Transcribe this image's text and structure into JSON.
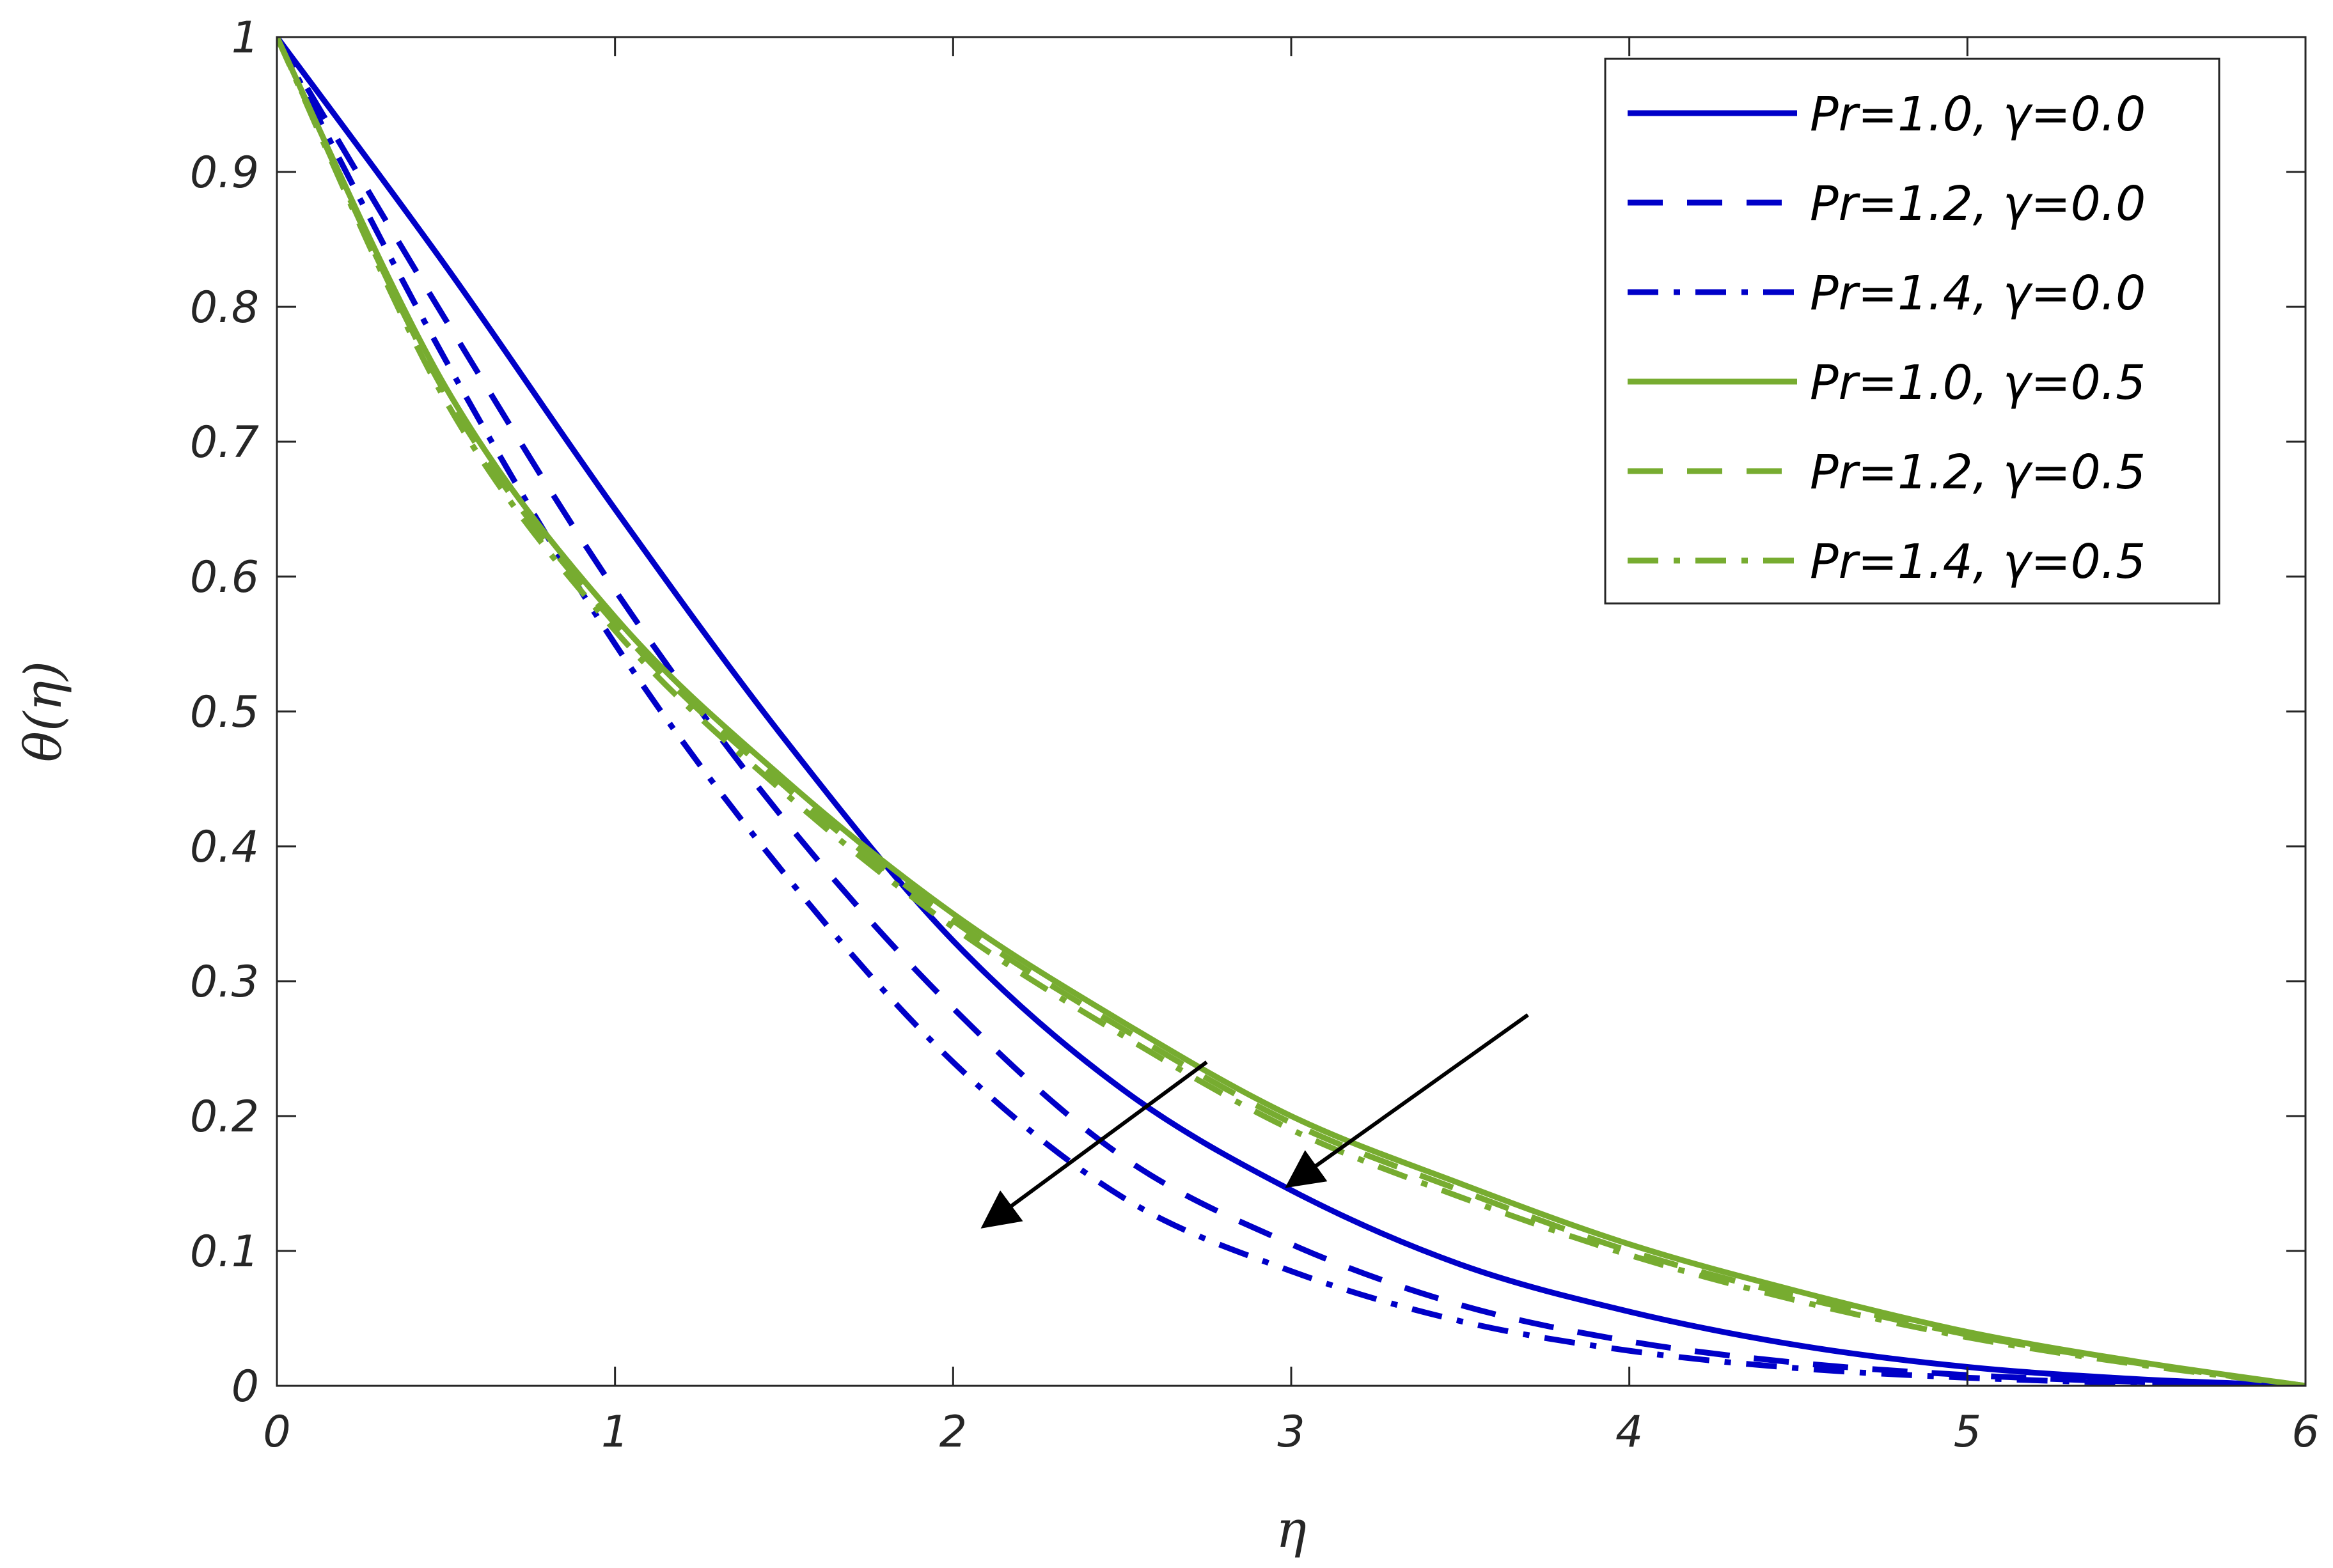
{
  "chart_data": {
    "type": "line",
    "title": "",
    "xlabel": "η",
    "ylabel": "θ(η)",
    "xlim": [
      0,
      6
    ],
    "ylim": [
      0,
      1
    ],
    "xticks": [
      0,
      1,
      2,
      3,
      4,
      5,
      6
    ],
    "xtick_labels": [
      "0",
      "1",
      "2",
      "3",
      "4",
      "5",
      "6"
    ],
    "yticks": [
      0,
      0.1,
      0.2,
      0.3,
      0.4,
      0.5,
      0.6,
      0.7,
      0.8,
      0.9,
      1
    ],
    "ytick_labels": [
      "0",
      "0.1",
      "0.2",
      "0.3",
      "0.4",
      "0.5",
      "0.6",
      "0.7",
      "0.8",
      "0.9",
      "1"
    ],
    "grid": false,
    "legend_position": "top-right",
    "x": [
      0,
      0.5,
      1,
      1.5,
      2,
      2.5,
      3,
      3.5,
      4,
      4.5,
      5,
      5.5,
      6
    ],
    "series": [
      {
        "name": "Pr=1.0, γ=0.0",
        "color": "#0000c8",
        "dash": "solid",
        "values": [
          1.0,
          0.83,
          0.65,
          0.48,
          0.33,
          0.22,
          0.145,
          0.09,
          0.055,
          0.03,
          0.014,
          0.005,
          0.0
        ]
      },
      {
        "name": "Pr=1.2, γ=0.0",
        "color": "#0000c8",
        "dash": "dashed",
        "values": [
          1.0,
          0.79,
          0.59,
          0.42,
          0.28,
          0.17,
          0.105,
          0.06,
          0.033,
          0.017,
          0.008,
          0.003,
          0.0
        ]
      },
      {
        "name": "Pr=1.4, γ=0.0",
        "color": "#0000c8",
        "dash": "dashdot",
        "values": [
          1.0,
          0.76,
          0.55,
          0.38,
          0.24,
          0.14,
          0.085,
          0.048,
          0.026,
          0.013,
          0.006,
          0.002,
          0.0
        ]
      },
      {
        "name": "Pr=1.0, γ=0.5",
        "color": "#77ac30",
        "dash": "solid",
        "values": [
          1.0,
          0.74,
          0.57,
          0.45,
          0.35,
          0.27,
          0.2,
          0.15,
          0.105,
          0.07,
          0.04,
          0.018,
          0.0
        ]
      },
      {
        "name": "Pr=1.2, γ=0.5",
        "color": "#77ac30",
        "dash": "dashed",
        "values": [
          1.0,
          0.735,
          0.565,
          0.445,
          0.345,
          0.265,
          0.195,
          0.145,
          0.1,
          0.066,
          0.038,
          0.017,
          0.0
        ]
      },
      {
        "name": "Pr=1.4, γ=0.5",
        "color": "#77ac30",
        "dash": "dashdot",
        "values": [
          1.0,
          0.73,
          0.56,
          0.44,
          0.34,
          0.26,
          0.19,
          0.14,
          0.097,
          0.063,
          0.036,
          0.016,
          0.0
        ]
      }
    ],
    "annotations": [
      {
        "type": "arrow",
        "from": [
          3.7,
          0.275
        ],
        "to": [
          3.0,
          0.15
        ]
      },
      {
        "type": "arrow",
        "from": [
          2.75,
          0.24
        ],
        "to": [
          2.1,
          0.12
        ]
      }
    ]
  }
}
